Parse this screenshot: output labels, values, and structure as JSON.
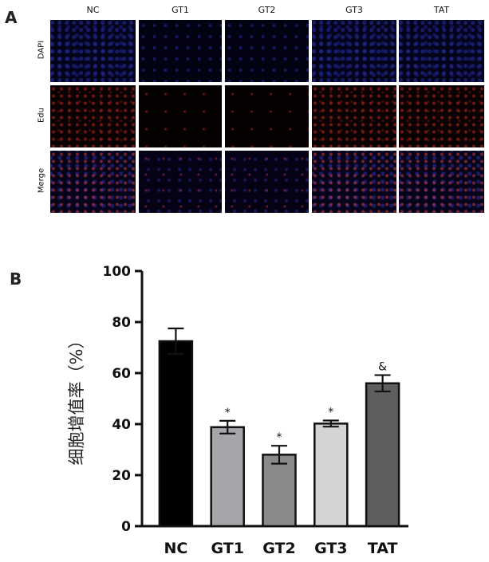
{
  "panel_a": {
    "letter": "A",
    "columns": [
      "NC",
      "GT1",
      "GT2",
      "GT3",
      "TAT"
    ],
    "rows": [
      "DAPI",
      "Edu",
      "Merge"
    ]
  },
  "panel_b": {
    "letter": "B"
  },
  "chart_data": {
    "type": "bar",
    "categories": [
      "NC",
      "GT1",
      "GT2",
      "GT3",
      "TAT"
    ],
    "values": [
      72.5,
      38.8,
      28.0,
      40.2,
      56.0
    ],
    "errors": [
      5.0,
      2.5,
      3.5,
      1.2,
      3.2
    ],
    "annotations": [
      "",
      "*",
      "*",
      "*",
      "&"
    ],
    "bar_colors": [
      "#000000",
      "#a6a6aa",
      "#8a8a8a",
      "#d4d4d4",
      "#5e5e5e"
    ],
    "ylabel": "细胞增值率（%）",
    "xlabel": "",
    "ylim": [
      0,
      100
    ],
    "yticks": [
      0,
      20,
      40,
      60,
      80,
      100
    ],
    "grid": false
  }
}
